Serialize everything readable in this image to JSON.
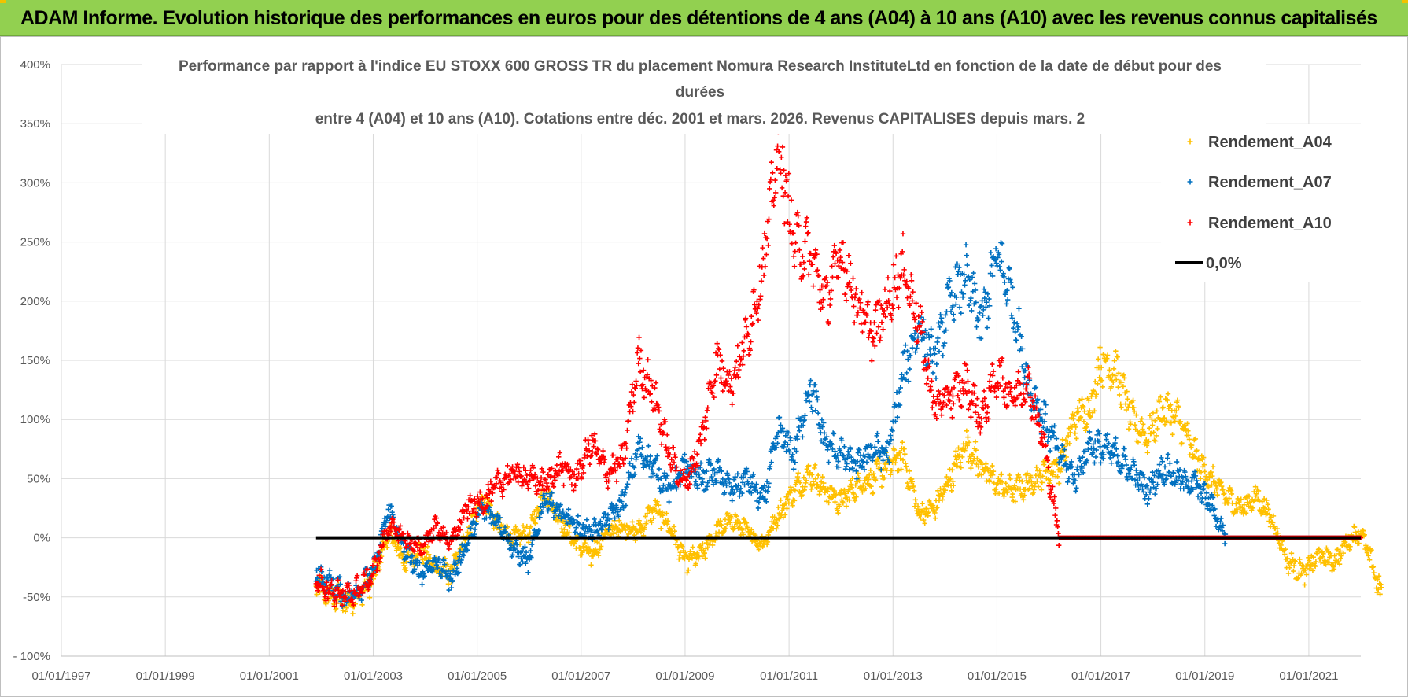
{
  "header": {
    "title": "ADAM Informe. Evolution historique des performances en euros pour des détentions de 4 ans (A04) à 10 ans (A10) avec les revenus connus capitalisés"
  },
  "colors": {
    "A04": "#ffc000",
    "A07": "#0070c0",
    "A10": "#ff0000",
    "zero": "#000000",
    "banner": "#92d050"
  },
  "chart_data": {
    "type": "scatter",
    "title_lines": [
      "Performance par rapport à l'indice EU STOXX 600 GROSS TR  du placement Nomura Research InstituteLtd en fonction de la date de début pour des",
      "durées",
      "entre 4 (A04) et 10 ans (A10). Cotations entre déc. 2001 et mars. 2026. Revenus CAPITALISES depuis mars. 2"
    ],
    "x_range": [
      1997.0,
      2022.0
    ],
    "x_ticks": [
      "01/01/1997",
      "01/01/1999",
      "01/01/2001",
      "01/01/2003",
      "01/01/2005",
      "01/01/2007",
      "01/01/2009",
      "01/01/2011",
      "01/01/2013",
      "01/01/2015",
      "01/01/2017",
      "01/01/2019",
      "01/01/2021"
    ],
    "x_tick_values": [
      1997,
      1999,
      2001,
      2003,
      2005,
      2007,
      2009,
      2011,
      2013,
      2015,
      2017,
      2019,
      2021
    ],
    "y_range": [
      -100,
      400
    ],
    "y_ticks": [
      "- 100%",
      "-50%",
      "0%",
      "50%",
      "100%",
      "150%",
      "200%",
      "250%",
      "300%",
      "350%",
      "400%"
    ],
    "y_tick_values": [
      -100,
      -50,
      0,
      50,
      100,
      150,
      200,
      250,
      300,
      350,
      400
    ],
    "legend": [
      "Rendement_A04",
      "Rendement_A07",
      "Rendement_A10",
      "0,0%"
    ],
    "series": [
      {
        "name": "Rendement_A04",
        "x": [
          2001.9,
          2002.2,
          2002.5,
          2002.8,
          2003.0,
          2003.3,
          2003.6,
          2003.9,
          2004.2,
          2004.5,
          2004.8,
          2005.1,
          2005.4,
          2005.7,
          2006.0,
          2006.3,
          2006.6,
          2006.9,
          2007.2,
          2007.5,
          2007.8,
          2008.1,
          2008.4,
          2008.7,
          2009.0,
          2009.3,
          2009.6,
          2009.9,
          2010.2,
          2010.5,
          2010.8,
          2011.1,
          2011.4,
          2011.7,
          2012.0,
          2012.3,
          2012.6,
          2012.9,
          2013.2,
          2013.5,
          2013.8,
          2014.1,
          2014.4,
          2014.7,
          2015.0,
          2015.3,
          2015.6,
          2015.9,
          2016.2,
          2016.5,
          2016.8,
          2017.0,
          2017.3,
          2017.6,
          2017.9,
          2018.2,
          2018.5,
          2018.8,
          2019.1,
          2019.4,
          2019.7,
          2020.0,
          2020.3,
          2020.6,
          2020.9,
          2021.2,
          2021.5,
          2021.8,
          2022.0,
          2022.2,
          2022.4
        ],
        "y": [
          -40,
          -50,
          -55,
          -45,
          -35,
          5,
          -20,
          -10,
          -25,
          -30,
          0,
          35,
          10,
          0,
          5,
          40,
          15,
          -5,
          -15,
          5,
          10,
          5,
          25,
          10,
          -20,
          -15,
          5,
          15,
          5,
          -5,
          20,
          40,
          55,
          40,
          30,
          45,
          50,
          60,
          70,
          20,
          25,
          50,
          80,
          60,
          45,
          40,
          45,
          55,
          60,
          100,
          110,
          150,
          140,
          100,
          85,
          110,
          100,
          70,
          50,
          35,
          25,
          35,
          15,
          -20,
          -30,
          -15,
          -20,
          0,
          5,
          -20,
          -50
        ]
      },
      {
        "name": "Rendement_A07",
        "x": [
          2001.9,
          2002.2,
          2002.5,
          2002.8,
          2003.0,
          2003.3,
          2003.6,
          2003.9,
          2004.2,
          2004.5,
          2004.8,
          2005.1,
          2005.4,
          2005.7,
          2006.0,
          2006.3,
          2006.6,
          2006.9,
          2007.2,
          2007.5,
          2007.8,
          2008.1,
          2008.4,
          2008.7,
          2009.0,
          2009.3,
          2009.6,
          2009.9,
          2010.2,
          2010.5,
          2010.8,
          2011.1,
          2011.4,
          2011.7,
          2012.0,
          2012.3,
          2012.6,
          2012.9,
          2013.2,
          2013.5,
          2013.8,
          2014.1,
          2014.4,
          2014.7,
          2015.0,
          2015.3,
          2015.6,
          2015.9,
          2016.2,
          2016.5,
          2016.8,
          2017.0,
          2017.3,
          2017.6,
          2017.9,
          2018.2,
          2018.5,
          2018.8,
          2019.1,
          2019.4
        ],
        "y": [
          -30,
          -40,
          -50,
          -40,
          -30,
          25,
          -10,
          -30,
          -20,
          -35,
          -5,
          25,
          15,
          -10,
          -20,
          35,
          20,
          10,
          5,
          15,
          30,
          75,
          60,
          40,
          60,
          50,
          55,
          40,
          50,
          30,
          90,
          70,
          130,
          80,
          70,
          60,
          75,
          70,
          140,
          180,
          150,
          200,
          220,
          180,
          240,
          200,
          130,
          100,
          70,
          50,
          80,
          75,
          70,
          55,
          40,
          60,
          50,
          45,
          30,
          0
        ]
      },
      {
        "name": "Rendement_A10",
        "x": [
          2001.9,
          2002.2,
          2002.5,
          2002.8,
          2003.0,
          2003.3,
          2003.6,
          2003.9,
          2004.2,
          2004.5,
          2004.8,
          2005.1,
          2005.4,
          2005.7,
          2006.0,
          2006.3,
          2006.6,
          2006.9,
          2007.2,
          2007.5,
          2007.8,
          2008.1,
          2008.4,
          2008.7,
          2009.0,
          2009.3,
          2009.6,
          2009.9,
          2010.2,
          2010.5,
          2010.8,
          2011.1,
          2011.4,
          2011.7,
          2012.0,
          2012.3,
          2012.6,
          2012.9,
          2013.2,
          2013.5,
          2013.8,
          2014.1,
          2014.4,
          2014.7,
          2015.0,
          2015.3,
          2015.6,
          2015.9,
          2016.2
        ],
        "y": [
          -35,
          -45,
          -50,
          -40,
          -30,
          10,
          0,
          -10,
          10,
          -5,
          25,
          30,
          45,
          55,
          50,
          45,
          60,
          50,
          80,
          55,
          65,
          150,
          120,
          70,
          45,
          80,
          150,
          130,
          170,
          230,
          330,
          250,
          240,
          200,
          240,
          200,
          170,
          200,
          230,
          180,
          110,
          120,
          130,
          100,
          140,
          120,
          130,
          80,
          0
        ]
      },
      {
        "name": "0,0%",
        "x": [
          2001.9,
          2022.0
        ],
        "y": [
          0,
          0
        ]
      }
    ]
  }
}
